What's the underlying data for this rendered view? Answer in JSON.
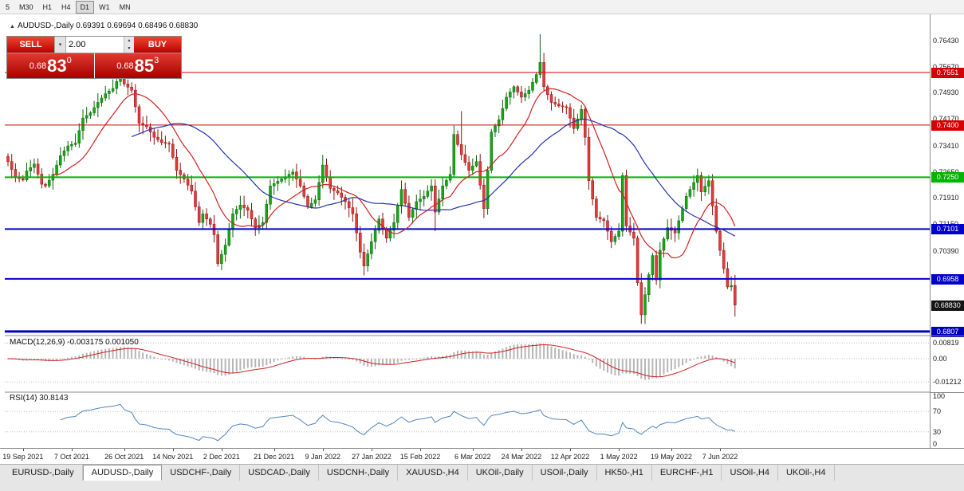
{
  "toolbar": {
    "periods": [
      "5",
      "M30",
      "H1",
      "H4",
      "D1",
      "W1",
      "MN"
    ],
    "active": "D1"
  },
  "ohlc_line": {
    "marker": "▲",
    "text": "AUDUSD-,Daily  0.69391 0.69694 0.68496 0.68830"
  },
  "trade_panel": {
    "sell_label": "SELL",
    "buy_label": "BUY",
    "volume": "2.00",
    "dropdown_icon": "▾",
    "spin_up_icon": "▲",
    "spin_down_icon": "▼",
    "sell_price": {
      "prefix": "0.68",
      "big": "83",
      "sup": "0"
    },
    "buy_price": {
      "prefix": "0.68",
      "big": "85",
      "sup": "3"
    }
  },
  "indicators": {
    "macd_label": "MACD(12,26,9) -0.003175 0.001050",
    "rsi_label": "RSI(14) 30.8143"
  },
  "time_axis": [
    {
      "i": 4,
      "t": "19 Sep 2021"
    },
    {
      "i": 17,
      "t": "7 Oct 2021"
    },
    {
      "i": 31,
      "t": "26 Oct 2021"
    },
    {
      "i": 44,
      "t": "14 Nov 2021"
    },
    {
      "i": 57,
      "t": "2 Dec 2021"
    },
    {
      "i": 71,
      "t": "21 Dec 2021"
    },
    {
      "i": 84,
      "t": "9 Jan 2022"
    },
    {
      "i": 97,
      "t": "27 Jan 2022"
    },
    {
      "i": 110,
      "t": "15 Feb 2022"
    },
    {
      "i": 124,
      "t": "6 Mar 2022"
    },
    {
      "i": 137,
      "t": "24 Mar 2022"
    },
    {
      "i": 150,
      "t": "12 Apr 2022"
    },
    {
      "i": 163,
      "t": "1 May 2022"
    },
    {
      "i": 177,
      "t": "19 May 2022"
    },
    {
      "i": 190,
      "t": "7 Jun 2022"
    }
  ],
  "tabs": [
    "EURUSD-,Daily",
    "AUDUSD-,Daily",
    "USDCHF-,Daily",
    "USDCAD-,Daily",
    "USDCNH-,Daily",
    "XAUUSD-,H4",
    "UKOil-,Daily",
    "USOil-,Daily",
    "HK50-,H1",
    "EURCHF-,H1",
    "USOil-,H4",
    "UKOil-,H4"
  ],
  "active_tab": "AUDUSD-,Daily",
  "chart_data": {
    "type": "candlestick",
    "symbol": "AUDUSD-",
    "timeframe": "Daily",
    "n_candles": 195,
    "last_candle": {
      "o": 0.69391,
      "h": 0.69694,
      "l": 0.68496,
      "c": 0.6883
    },
    "close_waypoints": [
      [
        0,
        0.7295
      ],
      [
        2,
        0.725
      ],
      [
        4,
        0.7242
      ],
      [
        5,
        0.7268
      ],
      [
        7,
        0.7288
      ],
      [
        9,
        0.723
      ],
      [
        10,
        0.7225
      ],
      [
        12,
        0.7258
      ],
      [
        14,
        0.7312
      ],
      [
        16,
        0.734
      ],
      [
        18,
        0.7348
      ],
      [
        20,
        0.742
      ],
      [
        22,
        0.7435
      ],
      [
        24,
        0.7465
      ],
      [
        26,
        0.749
      ],
      [
        28,
        0.7505
      ],
      [
        30,
        0.7545
      ],
      [
        31,
        0.7518
      ],
      [
        33,
        0.75
      ],
      [
        35,
        0.7405
      ],
      [
        37,
        0.7395
      ],
      [
        39,
        0.7365
      ],
      [
        41,
        0.735
      ],
      [
        43,
        0.7345
      ],
      [
        45,
        0.727
      ],
      [
        47,
        0.7245
      ],
      [
        49,
        0.721
      ],
      [
        51,
        0.712
      ],
      [
        52,
        0.7145
      ],
      [
        54,
        0.7115
      ],
      [
        55,
        0.7085
      ],
      [
        56,
        0.7002
      ],
      [
        58,
        0.7055
      ],
      [
        60,
        0.7145
      ],
      [
        62,
        0.717
      ],
      [
        64,
        0.7155
      ],
      [
        66,
        0.7105
      ],
      [
        68,
        0.712
      ],
      [
        70,
        0.7225
      ],
      [
        73,
        0.7245
      ],
      [
        76,
        0.7265
      ],
      [
        78,
        0.7225
      ],
      [
        80,
        0.7165
      ],
      [
        82,
        0.7185
      ],
      [
        84,
        0.7285
      ],
      [
        86,
        0.7218
      ],
      [
        88,
        0.7205
      ],
      [
        90,
        0.718
      ],
      [
        92,
        0.7145
      ],
      [
        94,
        0.7035
      ],
      [
        95,
        0.6995
      ],
      [
        97,
        0.7065
      ],
      [
        99,
        0.713
      ],
      [
        101,
        0.7075
      ],
      [
        103,
        0.712
      ],
      [
        105,
        0.7215
      ],
      [
        107,
        0.7135
      ],
      [
        109,
        0.718
      ],
      [
        111,
        0.7195
      ],
      [
        113,
        0.7225
      ],
      [
        114,
        0.715
      ],
      [
        116,
        0.7225
      ],
      [
        118,
        0.7258
      ],
      [
        119,
        0.7373
      ],
      [
        121,
        0.7315
      ],
      [
        123,
        0.727
      ],
      [
        125,
        0.7295
      ],
      [
        127,
        0.716
      ],
      [
        129,
        0.738
      ],
      [
        131,
        0.7415
      ],
      [
        133,
        0.748
      ],
      [
        135,
        0.751
      ],
      [
        137,
        0.748
      ],
      [
        139,
        0.75
      ],
      [
        141,
        0.7545
      ],
      [
        142,
        0.758
      ],
      [
        143,
        0.751
      ],
      [
        145,
        0.7465
      ],
      [
        147,
        0.7455
      ],
      [
        149,
        0.745
      ],
      [
        151,
        0.739
      ],
      [
        153,
        0.7445
      ],
      [
        154,
        0.7365
      ],
      [
        155,
        0.724
      ],
      [
        157,
        0.7135
      ],
      [
        159,
        0.7125
      ],
      [
        161,
        0.7065
      ],
      [
        163,
        0.7095
      ],
      [
        164,
        0.7255
      ],
      [
        165,
        0.711
      ],
      [
        167,
        0.7075
      ],
      [
        168,
        0.6947
      ],
      [
        169,
        0.6855
      ],
      [
        171,
        0.697
      ],
      [
        172,
        0.7025
      ],
      [
        173,
        0.6955
      ],
      [
        174,
        0.704
      ],
      [
        176,
        0.7105
      ],
      [
        178,
        0.709
      ],
      [
        180,
        0.716
      ],
      [
        181,
        0.7195
      ],
      [
        184,
        0.7255
      ],
      [
        185,
        0.7208
      ],
      [
        187,
        0.724
      ],
      [
        189,
        0.7095
      ],
      [
        190,
        0.704
      ],
      [
        192,
        0.6935
      ],
      [
        193,
        0.6939
      ],
      [
        194,
        0.6883
      ]
    ],
    "candle_overrides": {
      "56": {
        "l": 0.6993
      },
      "84": {
        "h": 0.7314
      },
      "95": {
        "l": 0.6968
      },
      "114": {
        "l": 0.7095
      },
      "121": {
        "h": 0.744
      },
      "142": {
        "h": 0.7661
      },
      "153": {
        "h": 0.7458
      },
      "169": {
        "l": 0.6829
      },
      "193": {
        "c": 0.69391
      },
      "194": {
        "o": 0.69391,
        "h": 0.69694,
        "l": 0.68496,
        "c": 0.6883
      }
    },
    "levels": [
      {
        "price": 0.7551,
        "label": "0.7551",
        "color": "#d40000",
        "width": 1
      },
      {
        "price": 0.74,
        "label": "0.7400",
        "color": "#d40000",
        "width": 1
      },
      {
        "price": 0.725,
        "label": "0.7250",
        "color": "#00b400",
        "width": 2
      },
      {
        "price": 0.7101,
        "label": "0.7101",
        "color": "#0000cc",
        "width": 2
      },
      {
        "price": 0.6958,
        "label": "0.6958",
        "color": "#0000cc",
        "width": 2
      },
      {
        "price": 0.6807,
        "label": "0.6807",
        "color": "#0000bb",
        "width": 3
      }
    ],
    "current_price": {
      "value": 0.6883,
      "label": "0.68830",
      "color": "#141414"
    },
    "price_axis": [
      0.7643,
      0.7567,
      0.7493,
      0.7417,
      0.7341,
      0.7265,
      0.7191,
      0.7115,
      0.7039
    ],
    "ma_fast_period": 13,
    "ma_slow_period": 34,
    "macd": {
      "fast": 12,
      "slow": 26,
      "signal": 9,
      "axis": [
        {
          "v": 0.00819,
          "t": "0.00819"
        },
        {
          "v": 0,
          "t": "0.00"
        },
        {
          "v": -0.01212,
          "t": "-0.01212"
        }
      ]
    },
    "rsi": {
      "period": 14,
      "axis": [
        100,
        70,
        30,
        0
      ]
    },
    "colors": {
      "up": "#16a716",
      "up_border": "#0a650a",
      "down": "#e23b3b",
      "down_border": "#8f1010",
      "ma_fast": "#d22020",
      "ma_slow": "#2233aa",
      "macd_hist": "#b6b6b6",
      "macd_signal": "#cc2222",
      "rsi": "#4f86c0",
      "grid_dotted": "#bdbdbd",
      "separator": "#8a8a8a"
    }
  }
}
